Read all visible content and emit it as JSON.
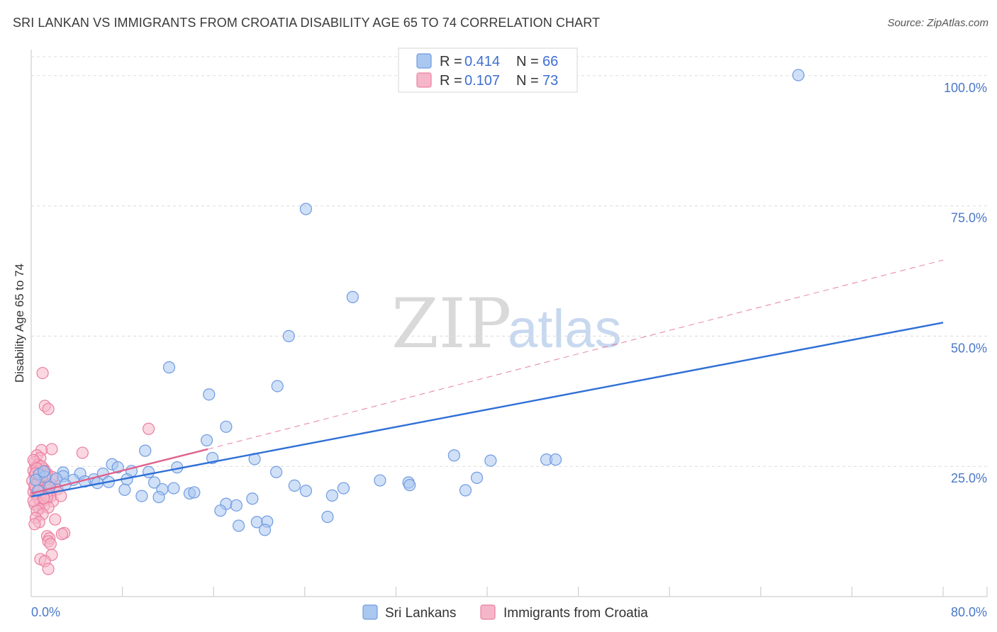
{
  "header": {
    "title": "SRI LANKAN VS IMMIGRANTS FROM CROATIA DISABILITY AGE 65 TO 74 CORRELATION CHART",
    "source": "Source: ZipAtlas.com"
  },
  "watermark": {
    "zip": "ZIP",
    "atlas": "atlas"
  },
  "colors": {
    "blue_fill": "#aac7f0",
    "blue_stroke": "#6f9be0",
    "blue_line": "#2f6fd6",
    "pink_fill": "#f6b6c9",
    "pink_stroke": "#ea7fa0",
    "pink_line": "#e0628c",
    "grid": "#dcdcdc",
    "tick_text": "#4a78c8"
  },
  "legend": {
    "entries": [
      {
        "r_label": "R = ",
        "r_value": "0.414",
        "n_label": "N = ",
        "n_value": "66"
      },
      {
        "r_label": "R = ",
        "r_value": "0.107",
        "n_label": "N = ",
        "n_value": "73"
      }
    ]
  },
  "chart_data": {
    "type": "scatter",
    "ylabel": "Disability Age 65 to 74",
    "xlabel": "",
    "xlim": [
      0,
      80
    ],
    "ylim": [
      0,
      105
    ],
    "x_tick_labels": [
      {
        "value": 0,
        "label": "0.0%"
      },
      {
        "value": 80,
        "label": "80.0%"
      }
    ],
    "y_tick_labels": [
      {
        "value": 25,
        "label": "25.0%"
      },
      {
        "value": 50,
        "label": "50.0%"
      },
      {
        "value": 75,
        "label": "75.0%"
      },
      {
        "value": 100,
        "label": "100.0%"
      }
    ],
    "x_minor_ticks": [
      8,
      16,
      24,
      32,
      40,
      48,
      56,
      64,
      72,
      80
    ],
    "grid": true,
    "legend_position": "top-center",
    "series": [
      {
        "name": "Sri Lankans",
        "color": "blue",
        "points": [
          [
            67.3,
            100.1
          ],
          [
            24.1,
            74.4
          ],
          [
            28.2,
            57.5
          ],
          [
            22.6,
            50.0
          ],
          [
            12.1,
            44.0
          ],
          [
            21.6,
            40.4
          ],
          [
            15.6,
            38.8
          ],
          [
            17.1,
            32.6
          ],
          [
            15.4,
            30.0
          ],
          [
            10.0,
            28.0
          ],
          [
            15.9,
            26.6
          ],
          [
            19.6,
            26.4
          ],
          [
            37.1,
            27.1
          ],
          [
            40.3,
            26.1
          ],
          [
            45.2,
            26.3
          ],
          [
            46.0,
            26.3
          ],
          [
            7.1,
            25.4
          ],
          [
            7.6,
            24.8
          ],
          [
            12.8,
            24.8
          ],
          [
            8.8,
            24.1
          ],
          [
            10.3,
            23.9
          ],
          [
            6.3,
            23.6
          ],
          [
            21.5,
            23.9
          ],
          [
            2.8,
            23.8
          ],
          [
            4.3,
            23.6
          ],
          [
            0.7,
            23.5
          ],
          [
            1.2,
            23.0
          ],
          [
            2.8,
            23.1
          ],
          [
            3.7,
            22.4
          ],
          [
            2.2,
            22.6
          ],
          [
            5.5,
            22.5
          ],
          [
            8.4,
            22.5
          ],
          [
            4.7,
            22.1
          ],
          [
            6.8,
            22.0
          ],
          [
            5.8,
            21.8
          ],
          [
            10.8,
            21.9
          ],
          [
            30.6,
            22.3
          ],
          [
            33.1,
            21.9
          ],
          [
            33.2,
            21.4
          ],
          [
            39.1,
            22.8
          ],
          [
            23.1,
            21.3
          ],
          [
            27.4,
            20.8
          ],
          [
            3.0,
            21.5
          ],
          [
            8.2,
            20.5
          ],
          [
            11.5,
            20.6
          ],
          [
            12.5,
            20.8
          ],
          [
            24.1,
            20.3
          ],
          [
            38.1,
            20.4
          ],
          [
            13.9,
            19.8
          ],
          [
            14.3,
            20.0
          ],
          [
            26.4,
            19.4
          ],
          [
            9.7,
            19.3
          ],
          [
            11.2,
            19.1
          ],
          [
            19.4,
            18.8
          ],
          [
            17.1,
            17.8
          ],
          [
            18.0,
            17.5
          ],
          [
            16.6,
            16.5
          ],
          [
            26.0,
            15.3
          ],
          [
            19.8,
            14.3
          ],
          [
            20.7,
            14.4
          ],
          [
            18.2,
            13.6
          ],
          [
            20.5,
            12.8
          ],
          [
            1.1,
            24.0
          ],
          [
            0.4,
            22.4
          ],
          [
            1.6,
            21.0
          ],
          [
            0.6,
            20.3
          ]
        ]
      },
      {
        "name": "Immigrants from Croatia",
        "color": "pink",
        "points": [
          [
            1.0,
            42.9
          ],
          [
            1.2,
            36.6
          ],
          [
            1.5,
            36.0
          ],
          [
            10.3,
            32.2
          ],
          [
            1.8,
            28.3
          ],
          [
            0.9,
            28.1
          ],
          [
            4.5,
            27.6
          ],
          [
            0.5,
            27.1
          ],
          [
            0.8,
            26.6
          ],
          [
            0.3,
            25.8
          ],
          [
            0.6,
            25.3
          ],
          [
            0.4,
            24.8
          ],
          [
            1.1,
            24.5
          ],
          [
            0.2,
            24.2
          ],
          [
            0.7,
            23.9
          ],
          [
            1.4,
            23.6
          ],
          [
            0.3,
            23.3
          ],
          [
            0.9,
            23.0
          ],
          [
            0.5,
            22.7
          ],
          [
            1.8,
            22.5
          ],
          [
            0.1,
            22.2
          ],
          [
            0.6,
            21.9
          ],
          [
            1.2,
            21.6
          ],
          [
            2.1,
            21.3
          ],
          [
            0.3,
            21.0
          ],
          [
            0.8,
            20.7
          ],
          [
            1.5,
            20.4
          ],
          [
            0.2,
            20.1
          ],
          [
            1.0,
            19.8
          ],
          [
            0.4,
            19.5
          ],
          [
            1.7,
            19.2
          ],
          [
            0.6,
            18.9
          ],
          [
            1.3,
            18.6
          ],
          [
            1.9,
            18.3
          ],
          [
            0.8,
            18.0
          ],
          [
            0.3,
            17.7
          ],
          [
            1.1,
            17.4
          ],
          [
            1.5,
            17.1
          ],
          [
            0.7,
            16.8
          ],
          [
            0.5,
            16.5
          ],
          [
            1.0,
            15.8
          ],
          [
            0.4,
            15.1
          ],
          [
            2.1,
            14.8
          ],
          [
            0.7,
            14.3
          ],
          [
            0.3,
            13.9
          ],
          [
            2.9,
            12.2
          ],
          [
            2.7,
            12.0
          ],
          [
            1.4,
            11.6
          ],
          [
            1.6,
            11.2
          ],
          [
            1.5,
            10.6
          ],
          [
            1.7,
            10.1
          ],
          [
            1.8,
            8.0
          ],
          [
            0.8,
            7.2
          ],
          [
            1.2,
            6.8
          ],
          [
            1.5,
            5.3
          ],
          [
            0.2,
            26.2
          ],
          [
            0.9,
            25.0
          ],
          [
            1.3,
            23.3
          ],
          [
            0.6,
            22.1
          ],
          [
            1.7,
            21.6
          ],
          [
            0.4,
            20.9
          ],
          [
            0.9,
            20.0
          ],
          [
            1.4,
            19.1
          ],
          [
            0.2,
            18.4
          ],
          [
            2.3,
            20.6
          ],
          [
            2.6,
            19.3
          ],
          [
            0.5,
            24.6
          ],
          [
            1.2,
            24.1
          ],
          [
            0.3,
            21.4
          ],
          [
            1.9,
            22.9
          ],
          [
            0.7,
            20.4
          ],
          [
            1.1,
            18.9
          ],
          [
            0.4,
            23.7
          ]
        ]
      }
    ],
    "trend_lines": [
      {
        "series": "Sri Lankans",
        "x0": 0,
        "y0": 19.2,
        "x1": 80,
        "y1": 52.6,
        "style": "solid"
      },
      {
        "series": "Immigrants from Croatia",
        "x0": 0,
        "y0": 19.8,
        "x1": 15.5,
        "y1": 28.3,
        "style": "solid"
      },
      {
        "series": "Immigrants from Croatia",
        "x0": 15.5,
        "y0": 28.3,
        "x1": 80,
        "y1": 64.6,
        "style": "dashed"
      }
    ]
  }
}
